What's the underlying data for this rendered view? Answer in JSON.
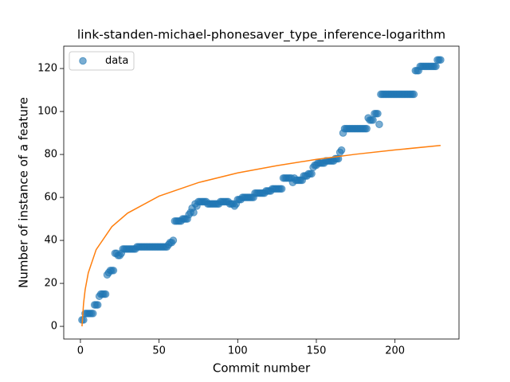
{
  "chart_data": {
    "type": "scatter",
    "title": "link-standen-michael-phonesaver_type_inference-logarithm",
    "xlabel": "Commit number",
    "ylabel": "Number of instance of a feature",
    "xlim": [
      -10.6,
      240.7
    ],
    "ylim": [
      -5.9,
      130.4
    ],
    "xticks": [
      0,
      50,
      100,
      150,
      200
    ],
    "yticks": [
      0,
      20,
      40,
      60,
      80,
      100,
      120
    ],
    "legend": "upper left",
    "series": [
      {
        "name": "data",
        "color": "#1f77b4",
        "mode": "markers",
        "x": [
          1,
          2,
          3,
          4,
          5,
          6,
          7,
          8,
          9,
          10,
          11,
          12,
          13,
          14,
          15,
          16,
          17,
          18,
          19,
          20,
          21,
          22,
          23,
          24,
          25,
          26,
          27,
          28,
          29,
          30,
          31,
          32,
          33,
          34,
          35,
          36,
          37,
          38,
          39,
          40,
          41,
          42,
          43,
          44,
          45,
          46,
          47,
          48,
          49,
          50,
          51,
          52,
          53,
          54,
          55,
          56,
          57,
          58,
          59,
          60,
          61,
          62,
          63,
          64,
          65,
          66,
          67,
          68,
          69,
          70,
          71,
          72,
          73,
          74,
          75,
          76,
          77,
          78,
          79,
          80,
          81,
          82,
          83,
          84,
          85,
          86,
          87,
          88,
          89,
          90,
          91,
          92,
          93,
          94,
          95,
          96,
          97,
          98,
          99,
          100,
          101,
          102,
          103,
          104,
          105,
          106,
          107,
          108,
          109,
          110,
          111,
          112,
          113,
          114,
          115,
          116,
          117,
          118,
          119,
          120,
          121,
          122,
          123,
          124,
          125,
          126,
          127,
          128,
          129,
          130,
          131,
          132,
          133,
          134,
          135,
          136,
          137,
          138,
          139,
          140,
          141,
          142,
          143,
          144,
          145,
          146,
          147,
          148,
          149,
          150,
          151,
          152,
          153,
          154,
          155,
          156,
          157,
          158,
          159,
          160,
          161,
          162,
          163,
          164,
          165,
          166,
          167,
          168,
          169,
          170,
          171,
          172,
          173,
          174,
          175,
          176,
          177,
          178,
          179,
          180,
          181,
          182,
          183,
          184,
          185,
          186,
          187,
          188,
          189,
          190,
          191,
          192,
          193,
          194,
          195,
          196,
          197,
          198,
          199,
          200,
          201,
          202,
          203,
          204,
          205,
          206,
          207,
          208,
          209,
          210,
          211,
          212,
          213,
          214,
          215,
          216,
          217,
          218,
          219,
          220,
          221,
          222,
          223,
          224,
          225,
          226,
          227,
          228,
          229
        ],
        "values": [
          3,
          3,
          6,
          6,
          6,
          6,
          6,
          6,
          10,
          10,
          10,
          14,
          15,
          15,
          15,
          15,
          24,
          25,
          26,
          26,
          26,
          34,
          34,
          33,
          33,
          34,
          36,
          36,
          36,
          36,
          36,
          36,
          36,
          36,
          36,
          37,
          37,
          37,
          37,
          37,
          37,
          37,
          37,
          37,
          37,
          37,
          37,
          37,
          37,
          37,
          37,
          37,
          37,
          37,
          37,
          38,
          39,
          39,
          40,
          49,
          49,
          49,
          49,
          49,
          50,
          50,
          50,
          50,
          52,
          53,
          55,
          53,
          57,
          56,
          58,
          58,
          58,
          58,
          58,
          58,
          57,
          57,
          57,
          57,
          57,
          57,
          57,
          57,
          58,
          58,
          58,
          58,
          58,
          58,
          57,
          57,
          57,
          56,
          57,
          59,
          59,
          59,
          60,
          60,
          60,
          60,
          60,
          60,
          60,
          60,
          62,
          62,
          62,
          62,
          62,
          62,
          62,
          63,
          63,
          63,
          63,
          64,
          64,
          64,
          64,
          64,
          64,
          64,
          69,
          69,
          69,
          69,
          69,
          69,
          67,
          69,
          68,
          68,
          68,
          68,
          68,
          70,
          70,
          70,
          71,
          71,
          71,
          74,
          75,
          75,
          76,
          76,
          76,
          76,
          76,
          77,
          77,
          77,
          77,
          77,
          77,
          78,
          78,
          78,
          81,
          82,
          90,
          92,
          92,
          92,
          92,
          92,
          92,
          92,
          92,
          92,
          92,
          92,
          92,
          92,
          92,
          92,
          97,
          96,
          96,
          96,
          99,
          99,
          99,
          94,
          108,
          108,
          108,
          108,
          108,
          108,
          108,
          108,
          108,
          108,
          108,
          108,
          108,
          108,
          108,
          108,
          108,
          108,
          108,
          108,
          108,
          108,
          119,
          119,
          119,
          121,
          121,
          121,
          121,
          121,
          121,
          121,
          121,
          121,
          121,
          121,
          124,
          124,
          124
        ]
      },
      {
        "color": "#ff7f0e",
        "mode": "lines",
        "x": [
          1,
          2,
          3,
          5,
          10,
          20,
          30,
          50,
          75,
          100,
          125,
          150,
          175,
          200,
          229
        ],
        "values": [
          0,
          10.7,
          17.0,
          24.9,
          35.7,
          46.4,
          52.7,
          60.6,
          66.9,
          71.4,
          74.8,
          77.7,
          80.1,
          82.1,
          84.2
        ]
      }
    ]
  }
}
